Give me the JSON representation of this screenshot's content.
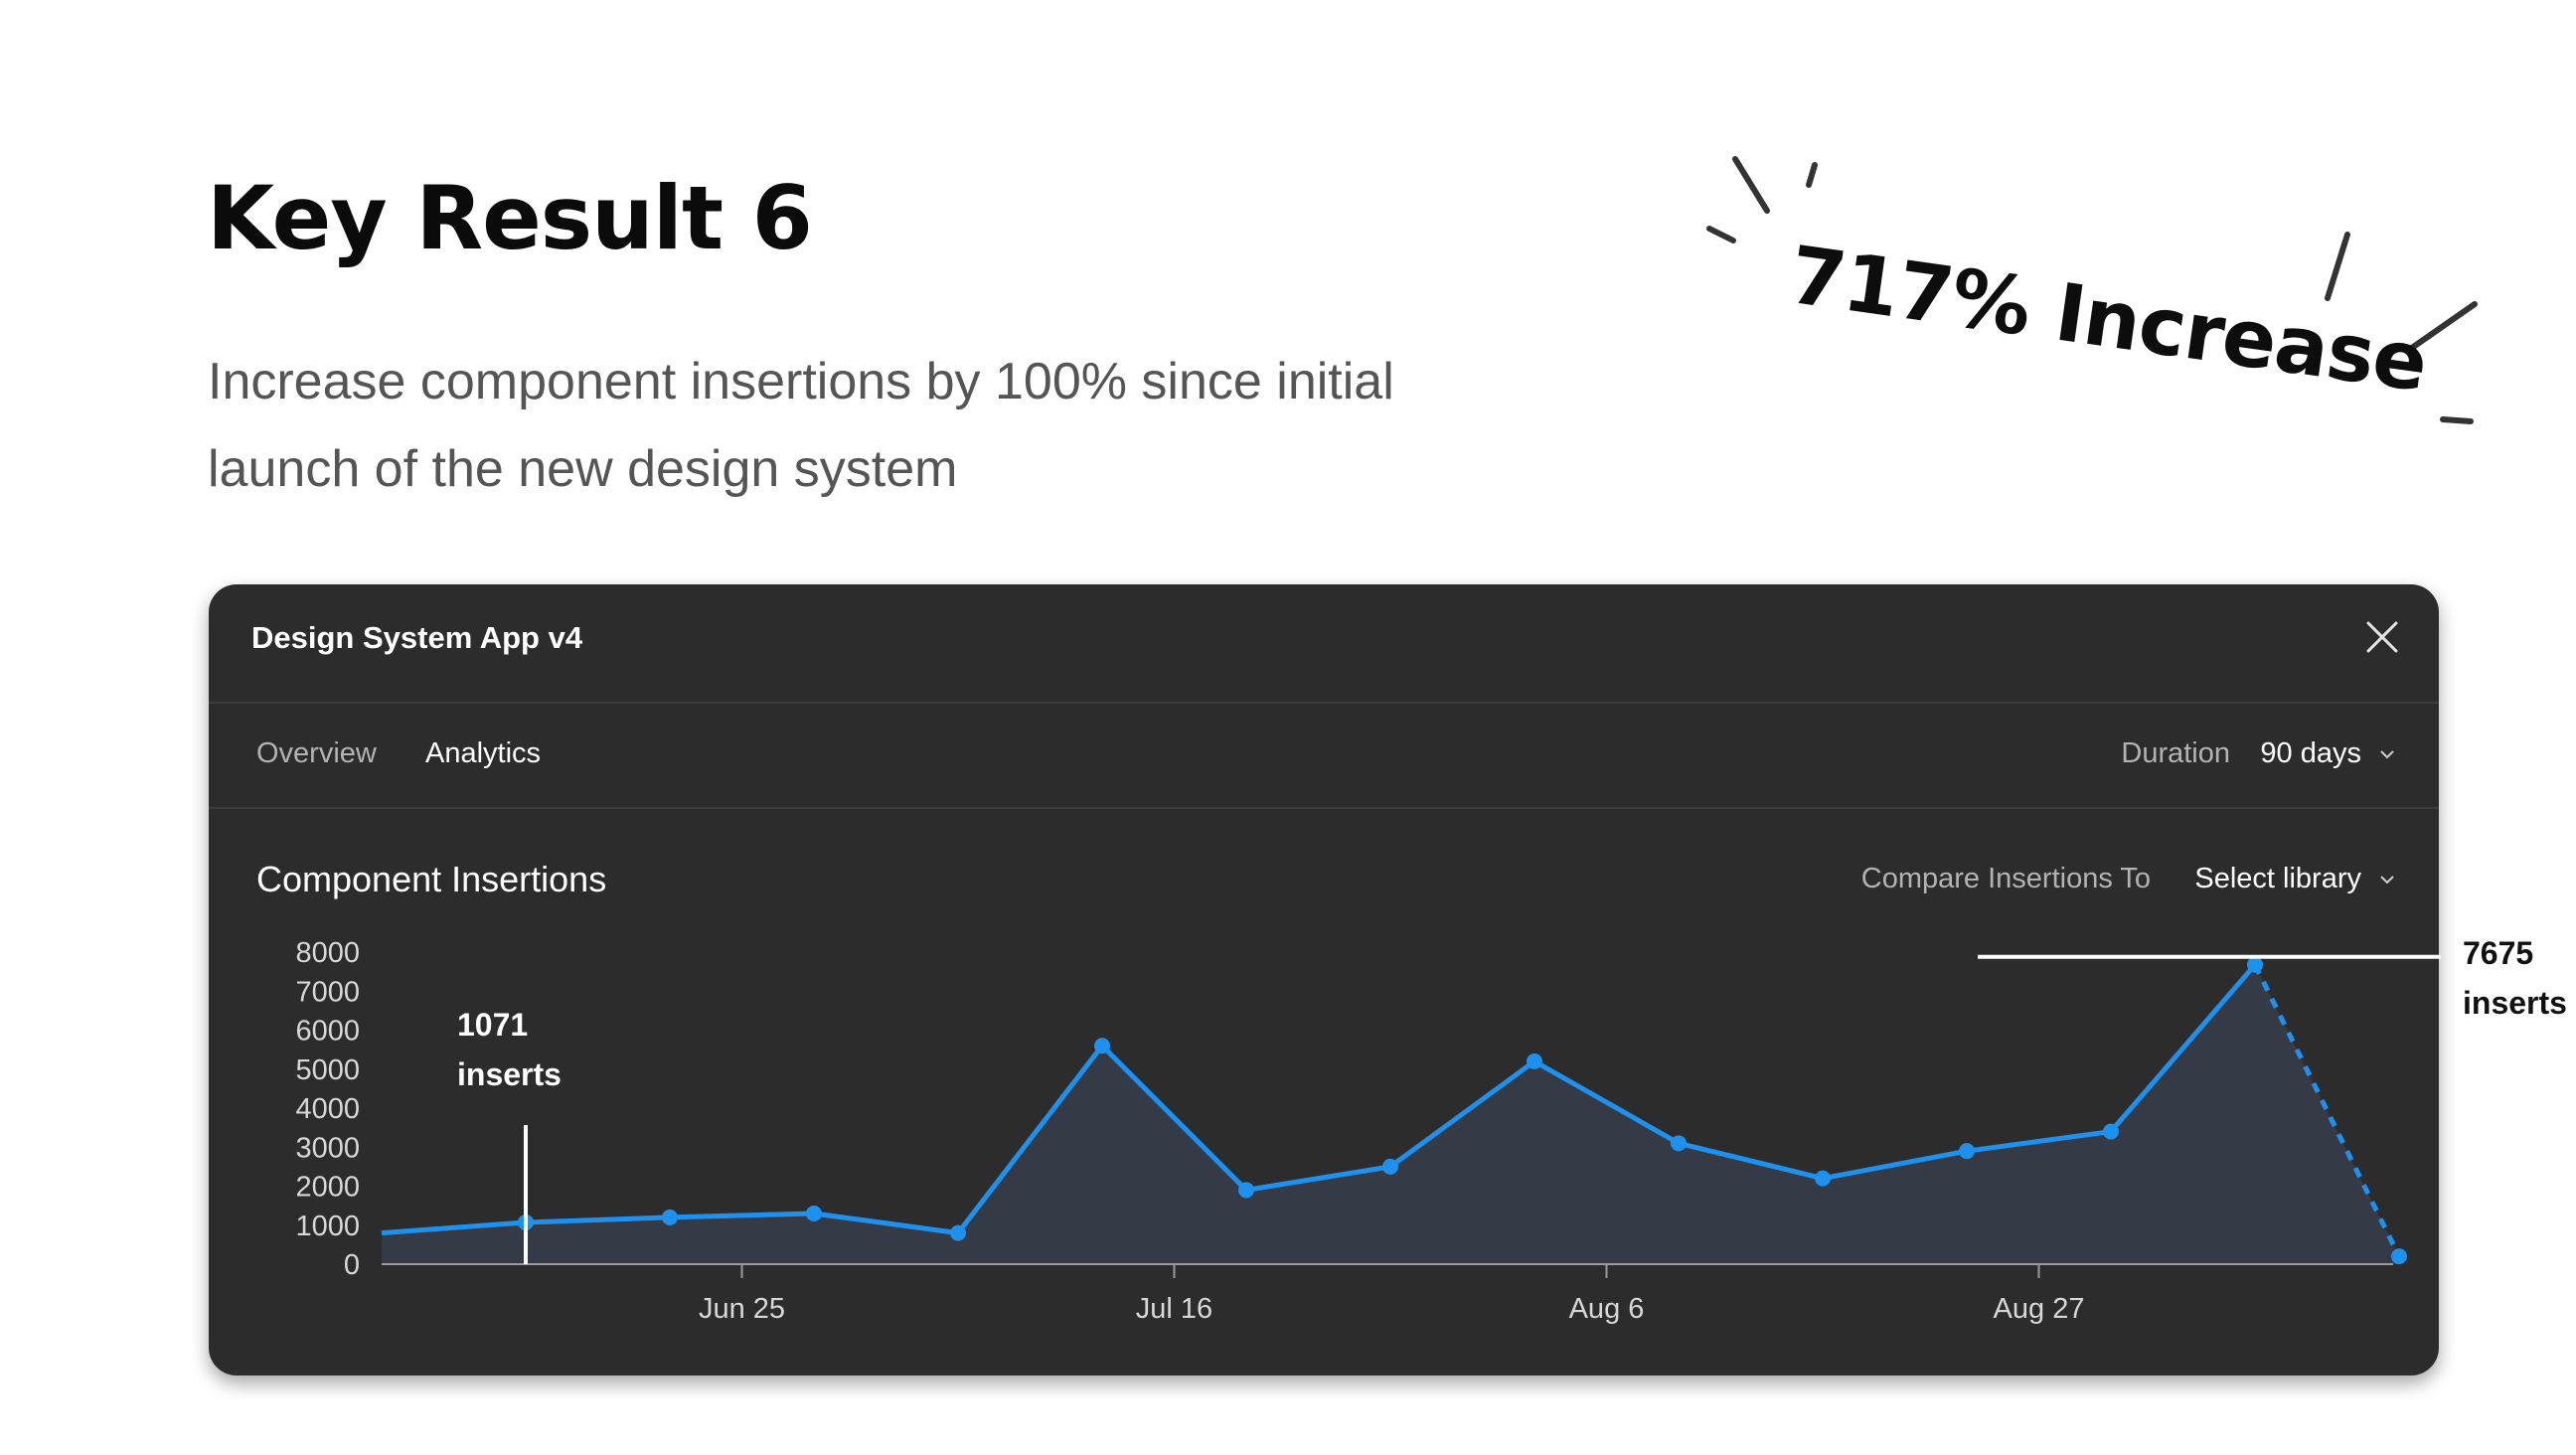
{
  "slide": {
    "title": "Key Result 6",
    "description": "Increase component insertions by 100% since initial launch of the new design system",
    "increase_label": "717% Increase"
  },
  "window": {
    "title": "Design System App v4",
    "tabs": [
      {
        "label": "Overview",
        "active": false
      },
      {
        "label": "Analytics",
        "active": true
      }
    ],
    "duration": {
      "label": "Duration",
      "value": "90 days"
    },
    "chart_header": {
      "title": "Component Insertions",
      "compare_label": "Compare Insertions To",
      "compare_value": "Select library"
    }
  },
  "chart_data": {
    "type": "area",
    "title": "Component Insertions",
    "xlabel": "",
    "ylabel": "",
    "ylim": [
      0,
      8000
    ],
    "yticks": [
      0,
      1000,
      2000,
      3000,
      4000,
      5000,
      6000,
      7000,
      8000
    ],
    "xticks": [
      "Jun 25",
      "Jul 16",
      "Aug 6",
      "Aug 27"
    ],
    "xtick_index": [
      2.5,
      5.5,
      8.5,
      11.5
    ],
    "series": [
      {
        "values": [
          800,
          1071,
          1200,
          1300,
          800,
          5600,
          1900,
          2500,
          5200,
          3100,
          2200,
          2900,
          3400,
          7675,
          200
        ],
        "markers": [
          false,
          true,
          true,
          true,
          true,
          true,
          true,
          true,
          true,
          true,
          true,
          true,
          true,
          true,
          true
        ],
        "projected_from_index": 13
      }
    ],
    "line_color": "#1e90ee",
    "fill_color": "#343b46",
    "annotations": [
      {
        "label_value": "1071",
        "label_unit": "inserts",
        "index": 1
      },
      {
        "label_value": "7675",
        "label_unit": "inserts",
        "index": 13
      }
    ],
    "grid": false,
    "legend": "none"
  },
  "colors": {
    "panel_bg": "#2c2c2c",
    "divider": "#3d3d3d",
    "accent": "#1e90ee",
    "muted_text": "#b3b3b3"
  },
  "icons": {
    "close": "close-icon",
    "dropdown": "chevron-down-icon"
  }
}
